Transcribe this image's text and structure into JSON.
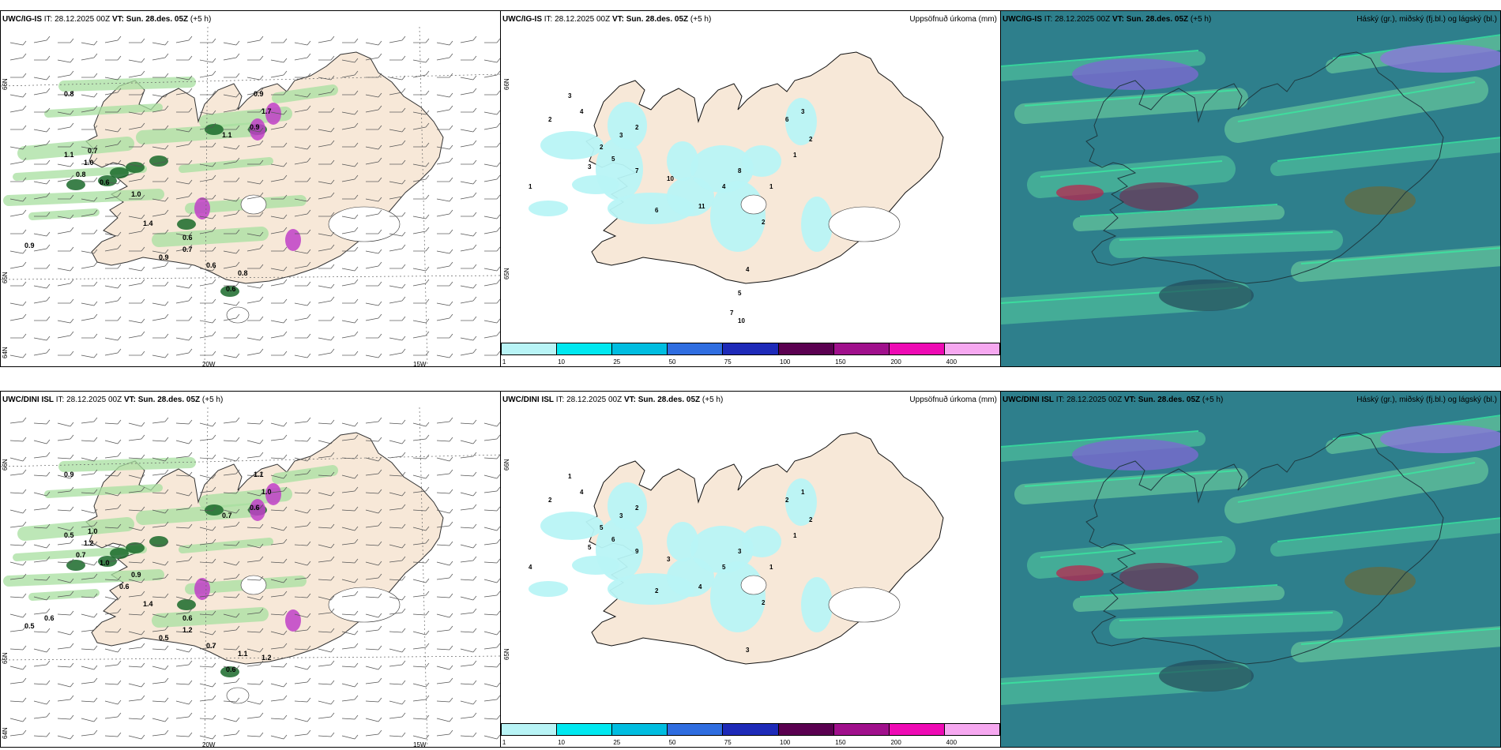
{
  "top": {
    "model_label": "UWC/IG-IS",
    "it_text": "IT: 28.12.2025 00Z",
    "vt_label": "VT:",
    "vt_value": "Sun. 28.des. 05Z",
    "lead": "(+5 h)"
  },
  "bottom": {
    "model_label": "UWC/DINI ISL",
    "it_text": "IT: 28.12.2025 00Z",
    "vt_label": "VT:",
    "vt_value": "Sun. 28.des. 05Z",
    "lead": "(+5 h)"
  },
  "precip_title": "Uppsöfnuð úrkoma (mm)",
  "cloud_title": "Háský (gr.), miðský (fj.bl.) og lágský (bl.)",
  "axis": {
    "lon_20": "20W",
    "lon_15": "15W",
    "lat_66": "66N",
    "lat_65": "65N",
    "lat_64": "64N"
  },
  "colorbar": {
    "ticks": [
      "1",
      "10",
      "25",
      "50",
      "75",
      "100",
      "150",
      "200",
      "400"
    ],
    "colors": [
      "#b8f4f6",
      "#00e8f0",
      "#00bde0",
      "#2f6de0",
      "#1e2ab8",
      "#5a0050",
      "#a0108c",
      "#ee0ab4",
      "#f6a8f0"
    ]
  },
  "colors": {
    "land": "#f7e8d8",
    "green_light": "#a8e0a0",
    "green_dark": "#1a6a2a",
    "magenta": "#c040c8",
    "precip_cyan": "#b8f4f6",
    "cloud_bg": "#2e7f8c"
  },
  "labels_top_left": [
    "0.8",
    "0.9",
    "1.7",
    "0.9",
    "1.1",
    "0.7",
    "1.1",
    "1.0",
    "0.8",
    "0.6",
    "1.0",
    "1.4",
    "0.6",
    "0.7",
    "0.9",
    "0.6",
    "0.8",
    "0.6",
    "0.9"
  ],
  "labels_bottom_left": [
    "0.9",
    "1.1",
    "1.0",
    "0.6",
    "0.7",
    "1.0",
    "0.5",
    "1.2",
    "0.7",
    "1.0",
    "0.9",
    "1.4",
    "0.6",
    "1.2",
    "0.5",
    "0.7",
    "1.1",
    "0.6",
    "0.5",
    "0.6",
    "1.2",
    "0.6"
  ],
  "labels_top_precip": [
    "3",
    "2",
    "4",
    "2",
    "3",
    "2",
    "1",
    "3",
    "5",
    "7",
    "10",
    "6",
    "11",
    "4",
    "8",
    "6",
    "3",
    "2",
    "1",
    "1",
    "2",
    "4",
    "5",
    "7",
    "10"
  ],
  "labels_bottom_precip": [
    "1",
    "2",
    "4",
    "5",
    "3",
    "2",
    "4",
    "5",
    "6",
    "9",
    "3",
    "2",
    "4",
    "5",
    "3",
    "2",
    "1",
    "2",
    "1",
    "1",
    "2",
    "3"
  ]
}
